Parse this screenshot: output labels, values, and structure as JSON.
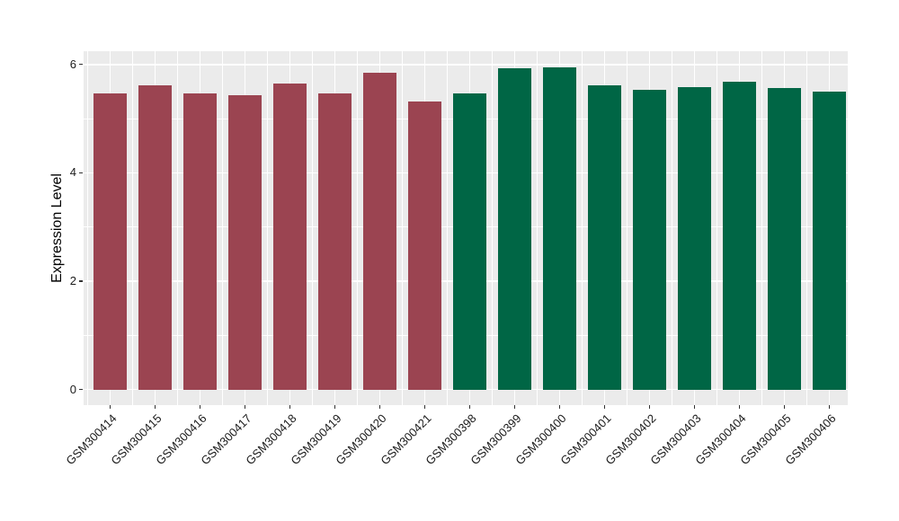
{
  "chart_data": {
    "type": "bar",
    "title": "",
    "xlabel": "",
    "ylabel": "Expression Level",
    "ylim": [
      0,
      6.25
    ],
    "yticks": [
      0,
      2,
      4,
      6
    ],
    "minor_yticks": [
      1,
      3,
      5
    ],
    "grid": true,
    "legend": false,
    "panel_background": "#EBEBEB",
    "gridline_color": "#FFFFFF",
    "tick_color": "#333333",
    "group_colors": {
      "left_group": "#9B4451",
      "right_group": "#006645"
    },
    "categories": [
      "GSM300414",
      "GSM300415",
      "GSM300416",
      "GSM300417",
      "GSM300418",
      "GSM300419",
      "GSM300420",
      "GSM300421",
      "GSM300398",
      "GSM300399",
      "GSM300400",
      "GSM300401",
      "GSM300402",
      "GSM300403",
      "GSM300404",
      "GSM300405",
      "GSM300406"
    ],
    "bars": [
      {
        "label": "GSM300414",
        "value": 5.47,
        "color": "#9B4451"
      },
      {
        "label": "GSM300415",
        "value": 5.61,
        "color": "#9B4451"
      },
      {
        "label": "GSM300416",
        "value": 5.47,
        "color": "#9B4451"
      },
      {
        "label": "GSM300417",
        "value": 5.43,
        "color": "#9B4451"
      },
      {
        "label": "GSM300418",
        "value": 5.65,
        "color": "#9B4451"
      },
      {
        "label": "GSM300419",
        "value": 5.47,
        "color": "#9B4451"
      },
      {
        "label": "GSM300420",
        "value": 5.84,
        "color": "#9B4451"
      },
      {
        "label": "GSM300421",
        "value": 5.32,
        "color": "#9B4451"
      },
      {
        "label": "GSM300398",
        "value": 5.46,
        "color": "#006645"
      },
      {
        "label": "GSM300399",
        "value": 5.93,
        "color": "#006645"
      },
      {
        "label": "GSM300400",
        "value": 5.95,
        "color": "#006645"
      },
      {
        "label": "GSM300401",
        "value": 5.61,
        "color": "#006645"
      },
      {
        "label": "GSM300402",
        "value": 5.53,
        "color": "#006645"
      },
      {
        "label": "GSM300403",
        "value": 5.59,
        "color": "#006645"
      },
      {
        "label": "GSM300404",
        "value": 5.68,
        "color": "#006645"
      },
      {
        "label": "GSM300405",
        "value": 5.57,
        "color": "#006645"
      },
      {
        "label": "GSM300406",
        "value": 5.5,
        "color": "#006645"
      }
    ]
  }
}
